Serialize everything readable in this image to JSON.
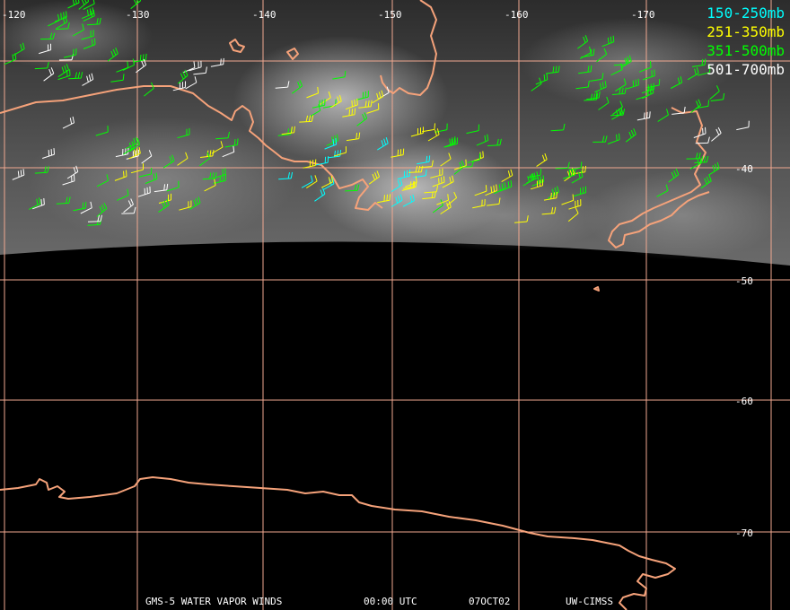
{
  "map": {
    "colors": {
      "background": "#000000",
      "grid": "#f0a890",
      "coast": "#f5a27a",
      "label": "#ffffff"
    },
    "longitude_labels": [
      "-120",
      "-130",
      "-140",
      "-150",
      "-160",
      "-170"
    ],
    "latitude_labels": [
      "-40",
      "-50",
      "-60",
      "-70"
    ]
  },
  "legend": [
    {
      "label": "150-250mb",
      "color": "#00ffff"
    },
    {
      "label": "251-350mb",
      "color": "#ffff00"
    },
    {
      "label": "351-500mb",
      "color": "#00ff00"
    },
    {
      "label": "501-700mb",
      "color": "#ffffff"
    }
  ],
  "footer": {
    "product": "GMS-5 WATER VAPOR WINDS",
    "time": "00:00 UTC",
    "date": "07OCT02",
    "source": "UW-CIMSS"
  }
}
